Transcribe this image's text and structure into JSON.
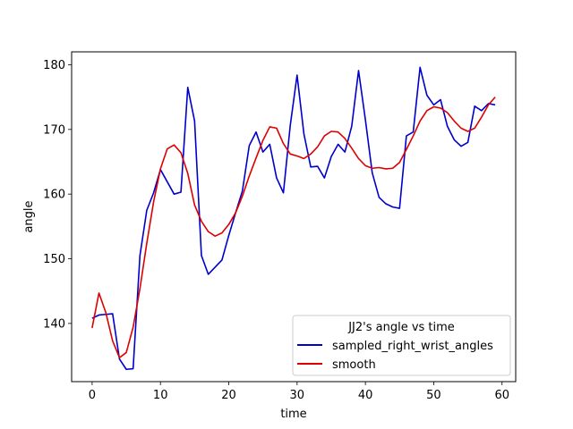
{
  "chart_data": {
    "type": "line",
    "xlabel": "time",
    "ylabel": "angle",
    "xlim": [
      -3,
      62
    ],
    "ylim": [
      131,
      182
    ],
    "xticks": [
      0,
      10,
      20,
      30,
      40,
      50,
      60
    ],
    "yticks": [
      140,
      150,
      160,
      170,
      180
    ],
    "grid": false,
    "legend": {
      "title": "JJ2's angle vs time",
      "placement": "lower-right"
    },
    "series": [
      {
        "name": "sampled_right_wrist_angles",
        "color": "#0000cc",
        "x": [
          0,
          1,
          2,
          3,
          4,
          5,
          6,
          7,
          8,
          9,
          10,
          11,
          12,
          13,
          14,
          15,
          16,
          17,
          18,
          19,
          20,
          21,
          22,
          23,
          24,
          25,
          26,
          27,
          28,
          29,
          30,
          31,
          32,
          33,
          34,
          35,
          36,
          37,
          38,
          39,
          40,
          41,
          42,
          43,
          44,
          45,
          46,
          47,
          48,
          49,
          50,
          51,
          52,
          53,
          54,
          55,
          56,
          57,
          58,
          59
        ],
        "values": [
          140.8,
          141.3,
          141.4,
          141.5,
          134.5,
          132.9,
          133.0,
          150.5,
          157.5,
          160.2,
          163.8,
          161.9,
          160.0,
          160.3,
          176.5,
          171.3,
          150.5,
          147.6,
          148.7,
          149.8,
          153.6,
          157.1,
          160.5,
          167.5,
          169.6,
          166.5,
          167.7,
          162.5,
          160.2,
          170.6,
          178.4,
          169.3,
          164.2,
          164.3,
          162.5,
          165.8,
          167.7,
          166.5,
          170.5,
          179.1,
          171.5,
          163.3,
          159.5,
          158.5,
          158.0,
          157.8,
          169.0,
          169.6,
          179.6,
          175.3,
          173.8,
          174.6,
          170.5,
          168.4,
          167.4,
          168.0,
          173.6,
          172.9,
          174.0,
          173.8
        ]
      },
      {
        "name": "smooth",
        "color": "#dd0000",
        "x": [
          0,
          1,
          2,
          3,
          4,
          5,
          6,
          7,
          8,
          9,
          10,
          11,
          12,
          13,
          14,
          15,
          16,
          17,
          18,
          19,
          20,
          21,
          22,
          23,
          24,
          25,
          26,
          27,
          28,
          29,
          30,
          31,
          32,
          33,
          34,
          35,
          36,
          37,
          38,
          39,
          40,
          41,
          42,
          43,
          44,
          45,
          46,
          47,
          48,
          49,
          50,
          51,
          52,
          53,
          54,
          55,
          56,
          57,
          58,
          59
        ],
        "values": [
          139.3,
          144.7,
          141.7,
          137.3,
          134.7,
          135.5,
          139.4,
          145.4,
          152.4,
          158.8,
          163.9,
          167.0,
          167.6,
          166.4,
          163.2,
          158.3,
          155.8,
          154.2,
          153.5,
          154.0,
          155.3,
          157.1,
          159.7,
          162.8,
          165.6,
          168.3,
          170.4,
          170.2,
          167.8,
          166.2,
          165.9,
          165.5,
          166.2,
          167.3,
          169.0,
          169.7,
          169.6,
          168.6,
          167.1,
          165.5,
          164.4,
          164.0,
          164.1,
          163.9,
          164.0,
          164.9,
          166.9,
          169.0,
          171.3,
          172.9,
          173.5,
          173.3,
          172.6,
          171.3,
          170.2,
          169.7,
          170.2,
          171.9,
          173.8,
          175.0
        ]
      }
    ]
  }
}
